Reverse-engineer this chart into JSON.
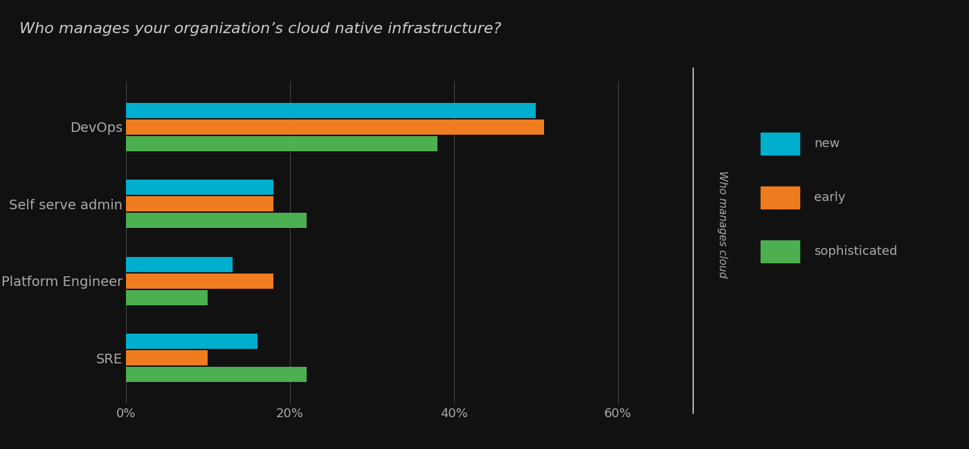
{
  "title": "Who manages your organization’s cloud native infrastructure?",
  "categories": [
    "DevOps",
    "Self serve admin",
    "Platform Engineer",
    "SRE"
  ],
  "series": {
    "new": [
      50,
      18,
      13,
      16
    ],
    "early": [
      51,
      18,
      18,
      10
    ],
    "sophisticated": [
      38,
      22,
      10,
      22
    ]
  },
  "colors": {
    "new": "#00AECD",
    "early": "#F07C20",
    "sophisticated": "#4CAF50"
  },
  "legend_labels": [
    "new",
    "early",
    "sophisticated"
  ],
  "x_ticks": [
    0,
    20,
    40,
    60
  ],
  "x_tick_labels": [
    "0%",
    "20%",
    "40%",
    "60%"
  ],
  "xlim": [
    0,
    65
  ],
  "bar_height": 0.2,
  "background_color": "#111111",
  "text_color": "#aaaaaa",
  "title_color": "#cccccc",
  "grid_color": "#444444",
  "ylabel_text": "Who manages cloud",
  "title_fontsize": 16,
  "axis_fontsize": 13,
  "label_fontsize": 14,
  "legend_fontsize": 13
}
